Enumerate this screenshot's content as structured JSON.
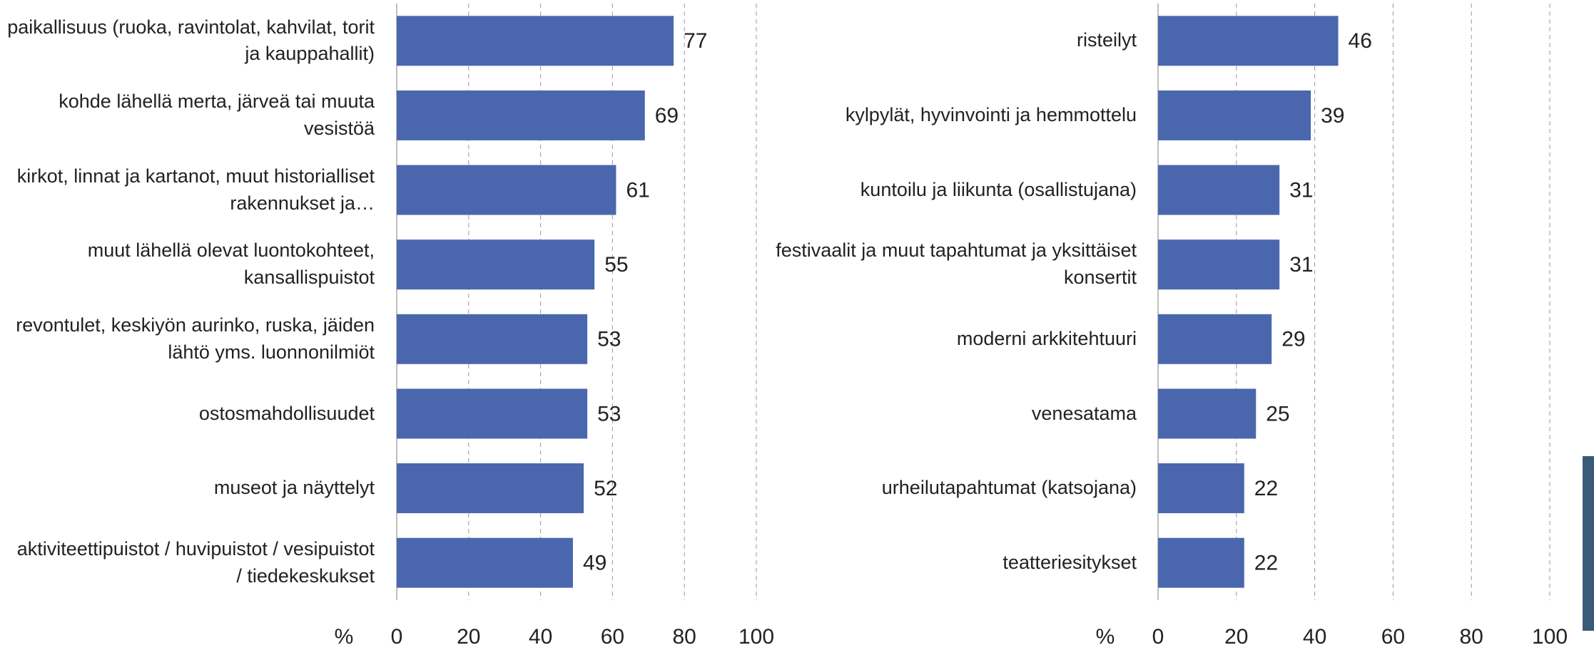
{
  "chart_data": [
    {
      "type": "bar",
      "orientation": "horizontal",
      "xlabel": "%",
      "color": "#4a67ae",
      "grid": true,
      "categories": [
        "paikallisuus (ruoka, ravintolat, kahvilat, torit ja kauppahallit)",
        "kohde lähellä merta, järveä tai muuta vesistöä",
        "kirkot, linnat ja kartanot, muut historialliset rakennukset ja…",
        "muut lähellä olevat luontokohteet, kansallispuistot",
        "revontulet, keskiyön aurinko, ruska, jäiden lähtö yms. luonnonilmiöt",
        "ostosmahdollisuudet",
        "museot ja näyttelyt",
        "aktiviteettipuistot / huvipuistot / vesipuistot / tiedekeskukset"
      ],
      "values": [
        77,
        69,
        61,
        55,
        53,
        53,
        52,
        49
      ],
      "xlim": [
        0,
        100
      ],
      "xticks": [
        0,
        20,
        40,
        60,
        80,
        100
      ]
    },
    {
      "type": "bar",
      "orientation": "horizontal",
      "xlabel": "%",
      "color": "#4a67ae",
      "grid": true,
      "categories": [
        "risteilyt",
        "kylpylät, hyvinvointi ja hemmottelu",
        "kuntoilu ja liikunta (osallistujana)",
        "festivaalit ja muut tapahtumat ja yksittäiset konsertit",
        "moderni arkkitehtuuri",
        "venesatama",
        "urheilutapahtumat (katsojana)",
        "teatteriesitykset"
      ],
      "values": [
        46,
        39,
        31,
        31,
        29,
        25,
        22,
        22
      ],
      "xlim": [
        0,
        100
      ],
      "xticks": [
        0,
        20,
        40,
        60,
        80,
        100
      ]
    }
  ]
}
